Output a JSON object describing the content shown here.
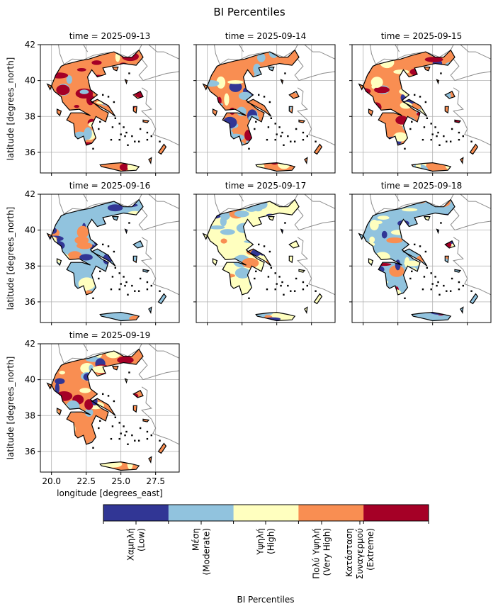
{
  "chart_data": {
    "type": "heatmap",
    "title": "BI Percentiles",
    "xlabel": "longitude [degrees_east]",
    "ylabel": "latitude [degrees_north]",
    "xlim": [
      19.2,
      29.2
    ],
    "ylim": [
      34.85,
      42
    ],
    "xticks": [
      "20.0",
      "22.5",
      "25.0",
      "27.5"
    ],
    "xtick_values": [
      20.0,
      22.5,
      25.0,
      27.5
    ],
    "yticks": [
      "36",
      "38",
      "40",
      "42"
    ],
    "ytick_values": [
      36,
      38,
      40,
      42
    ],
    "grid": true,
    "panels": [
      {
        "title": "time = 2025-09-13",
        "classes_present": [
          3,
          4,
          2,
          1
        ]
      },
      {
        "title": "time = 2025-09-14",
        "classes_present": [
          3,
          1,
          2,
          0,
          4
        ]
      },
      {
        "title": "time = 2025-09-15",
        "classes_present": [
          3,
          2,
          1,
          0,
          4
        ]
      },
      {
        "title": "time = 2025-09-16",
        "classes_present": [
          1,
          0,
          2,
          3
        ]
      },
      {
        "title": "time = 2025-09-17",
        "classes_present": [
          2,
          1,
          3,
          0
        ]
      },
      {
        "title": "time = 2025-09-18",
        "classes_present": [
          1,
          2,
          3,
          0,
          4
        ]
      },
      {
        "title": "time = 2025-09-19",
        "classes_present": [
          3,
          2,
          1,
          0,
          4
        ]
      }
    ],
    "colorbar": {
      "label": "BI Percentiles",
      "classes": [
        {
          "lines": [
            "Χαμηλή",
            "(Low)"
          ],
          "color": "#313695"
        },
        {
          "lines": [
            "Μέση",
            "(Moderate)"
          ],
          "color": "#91c3de"
        },
        {
          "lines": [
            "Υψηλή",
            "(High)"
          ],
          "color": "#ffffbf"
        },
        {
          "lines": [
            "Πολύ Υψηλή",
            "(Very High)"
          ],
          "color": "#f98e52"
        },
        {
          "lines": [
            "Κατάσταση",
            "Συναγερμού",
            "(Extreme)"
          ],
          "color": "#a50026"
        }
      ]
    }
  }
}
